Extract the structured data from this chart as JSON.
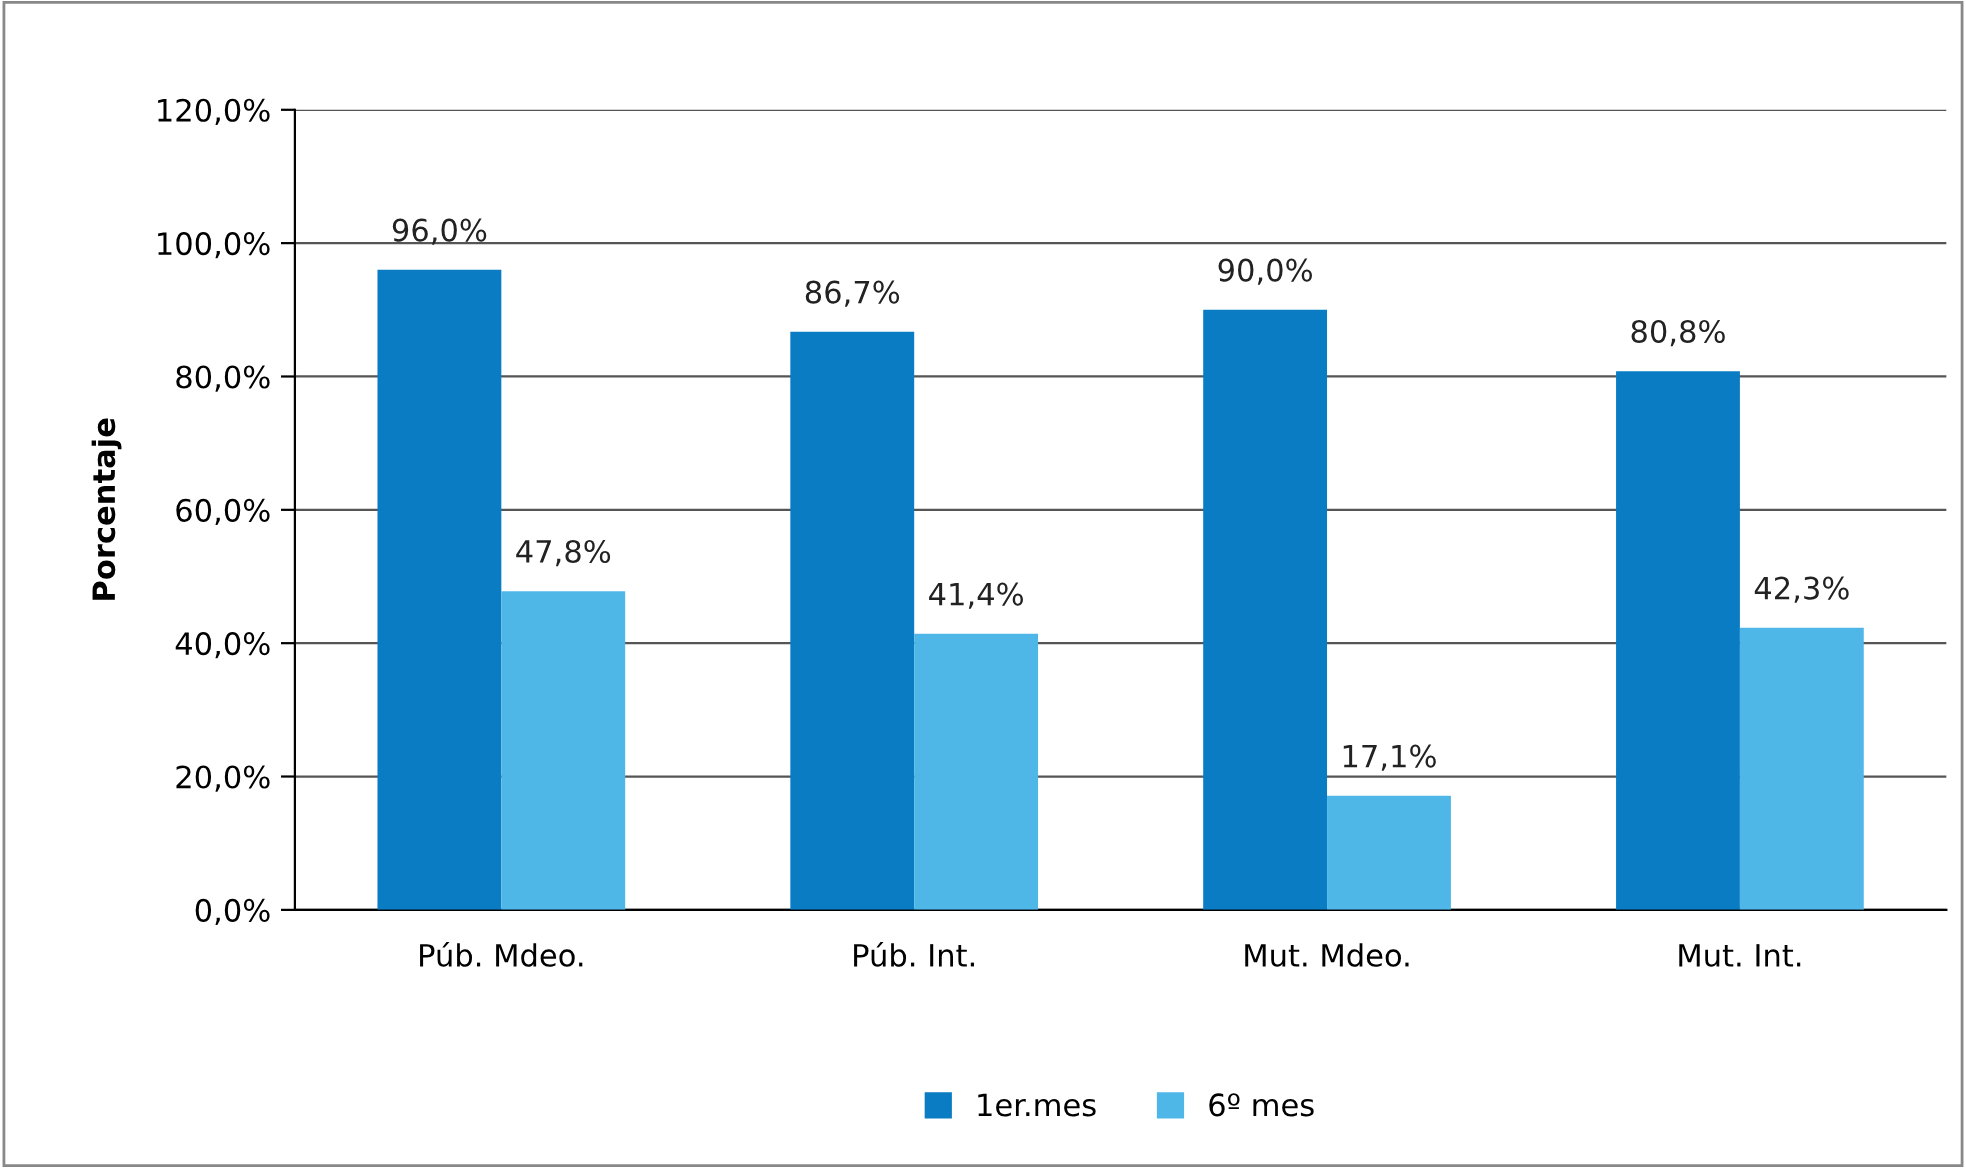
{
  "chart_data": {
    "type": "bar",
    "ylabel": "Porcentaje",
    "categories": [
      "Púb. Mdeo.",
      "Púb. Int.",
      "Mut. Mdeo.",
      "Mut. Int."
    ],
    "series": [
      {
        "name": "1er.mes",
        "color": "#0a7cc4",
        "values": [
          96.0,
          86.7,
          90.0,
          80.8
        ],
        "value_labels": [
          "96,0%",
          "86,7%",
          "90,0%",
          "80,8%"
        ]
      },
      {
        "name": "6º mes",
        "color": "#4fb7e8",
        "values": [
          47.8,
          41.4,
          17.1,
          42.3
        ],
        "value_labels": [
          "47,8%",
          "41,4%",
          "17,1%",
          "42,3%"
        ]
      }
    ],
    "ylim": [
      0,
      120
    ],
    "yticks": [
      {
        "value": 0,
        "label": "0,0%"
      },
      {
        "value": 20,
        "label": "20,0%"
      },
      {
        "value": 40,
        "label": "40,0%"
      },
      {
        "value": 60,
        "label": "60,0%"
      },
      {
        "value": 80,
        "label": "80,0%"
      },
      {
        "value": 100,
        "label": "100,0%"
      },
      {
        "value": 120,
        "label": "120,0%"
      }
    ],
    "grid": "y",
    "legend": "bottom"
  }
}
